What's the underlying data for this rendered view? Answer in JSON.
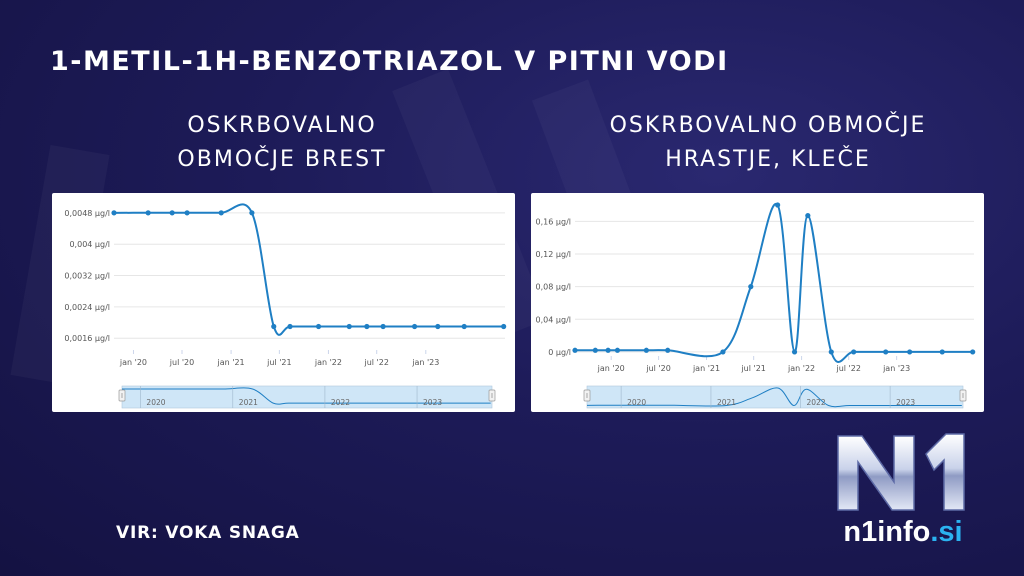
{
  "header": {
    "title": "1-METIL-1H-BENZOTRIAZOL V PITNI VODI"
  },
  "footer": {
    "source": "VIR: VOKA SNAGA"
  },
  "logo": {
    "mark": "N1",
    "name": "n1info",
    "tld": ".si",
    "accent": "#2bb3f0"
  },
  "colors": {
    "line": "#1f7fc4",
    "navigator_fill": "#cfe6f7",
    "grid": "#e6e6e6"
  },
  "chart_data": [
    {
      "type": "line",
      "title_lines": [
        "OSKRBOVALNO",
        "OBMOČJE BREST"
      ],
      "ylim": [
        0.0013,
        0.005
      ],
      "yticks": [
        0.0016,
        0.0024,
        0.0032,
        0.004,
        0.0048
      ],
      "ytick_labels": [
        "0,0016 µg/l",
        "0,0024 µg/l",
        "0,0032 µg/l",
        "0,004 µg/l",
        "0,0048 µg/l"
      ],
      "xlim": [
        "2019-10-20",
        "2023-10-25"
      ],
      "xticks": [
        "2020-01-01",
        "2020-07-01",
        "2021-01-01",
        "2021-07-01",
        "2022-01-01",
        "2022-07-01",
        "2023-01-01"
      ],
      "xtick_labels": [
        "jan '20",
        "jul '20",
        "jan '21",
        "jul '21",
        "jan '22",
        "jul '22",
        "jan '23"
      ],
      "navigator_labels": [
        "2020",
        "2021",
        "2022",
        "2023"
      ],
      "navigator_ticks": [
        "2020-01-01",
        "2021-01-01",
        "2022-01-01",
        "2023-01-01"
      ],
      "series": [
        {
          "x": [
            "2019-10-20",
            "2020-02-25",
            "2020-05-25",
            "2020-07-20",
            "2020-11-25",
            "2021-03-20",
            "2021-06-10",
            "2021-08-10",
            "2021-11-25",
            "2022-03-20",
            "2022-05-25",
            "2022-07-25",
            "2022-11-20",
            "2023-02-15",
            "2023-05-25",
            "2023-10-20"
          ],
          "y": [
            0.0048,
            0.0048,
            0.0048,
            0.0048,
            0.0048,
            0.0048,
            0.0019,
            0.0019,
            0.0019,
            0.0019,
            0.0019,
            0.0019,
            0.0019,
            0.0019,
            0.0019,
            0.0019
          ]
        }
      ]
    },
    {
      "type": "line",
      "title_lines": [
        "OSKRBOVALNO OBMOČJE",
        "HRASTJE, KLEČE"
      ],
      "ylim": [
        -0.005,
        0.18
      ],
      "yticks": [
        0,
        0.04,
        0.08,
        0.12,
        0.16
      ],
      "ytick_labels": [
        "0 µg/l",
        "0,04 µg/l",
        "0,08 µg/l",
        "0,12 µg/l",
        "0,16 µg/l"
      ],
      "xlim": [
        "2019-08-15",
        "2023-10-25"
      ],
      "xticks": [
        "2020-01-01",
        "2020-07-01",
        "2021-01-01",
        "2021-07-01",
        "2022-01-01",
        "2022-07-01",
        "2023-01-01"
      ],
      "xtick_labels": [
        "jan '20",
        "jul '20",
        "jan '21",
        "jul '21",
        "jan '22",
        "jul '22",
        "jan '23"
      ],
      "navigator_labels": [
        "2020",
        "2021",
        "2022",
        "2023"
      ],
      "navigator_ticks": [
        "2020-01-01",
        "2021-01-01",
        "2022-01-01",
        "2023-01-01"
      ],
      "series": [
        {
          "x": [
            "2019-08-15",
            "2019-11-01",
            "2019-12-20",
            "2020-01-25",
            "2020-05-15",
            "2020-08-05",
            "2021-03-05",
            "2021-06-20",
            "2021-10-01",
            "2021-12-05",
            "2022-01-25",
            "2022-04-25",
            "2022-07-20",
            "2022-11-20",
            "2023-02-20",
            "2023-06-25",
            "2023-10-20"
          ],
          "y": [
            0.002,
            0.002,
            0.002,
            0.002,
            0.002,
            0.002,
            0.0,
            0.08,
            0.18,
            0.0,
            0.167,
            0.0,
            0.0,
            0.0,
            0.0,
            0.0,
            0.0
          ]
        }
      ]
    }
  ]
}
